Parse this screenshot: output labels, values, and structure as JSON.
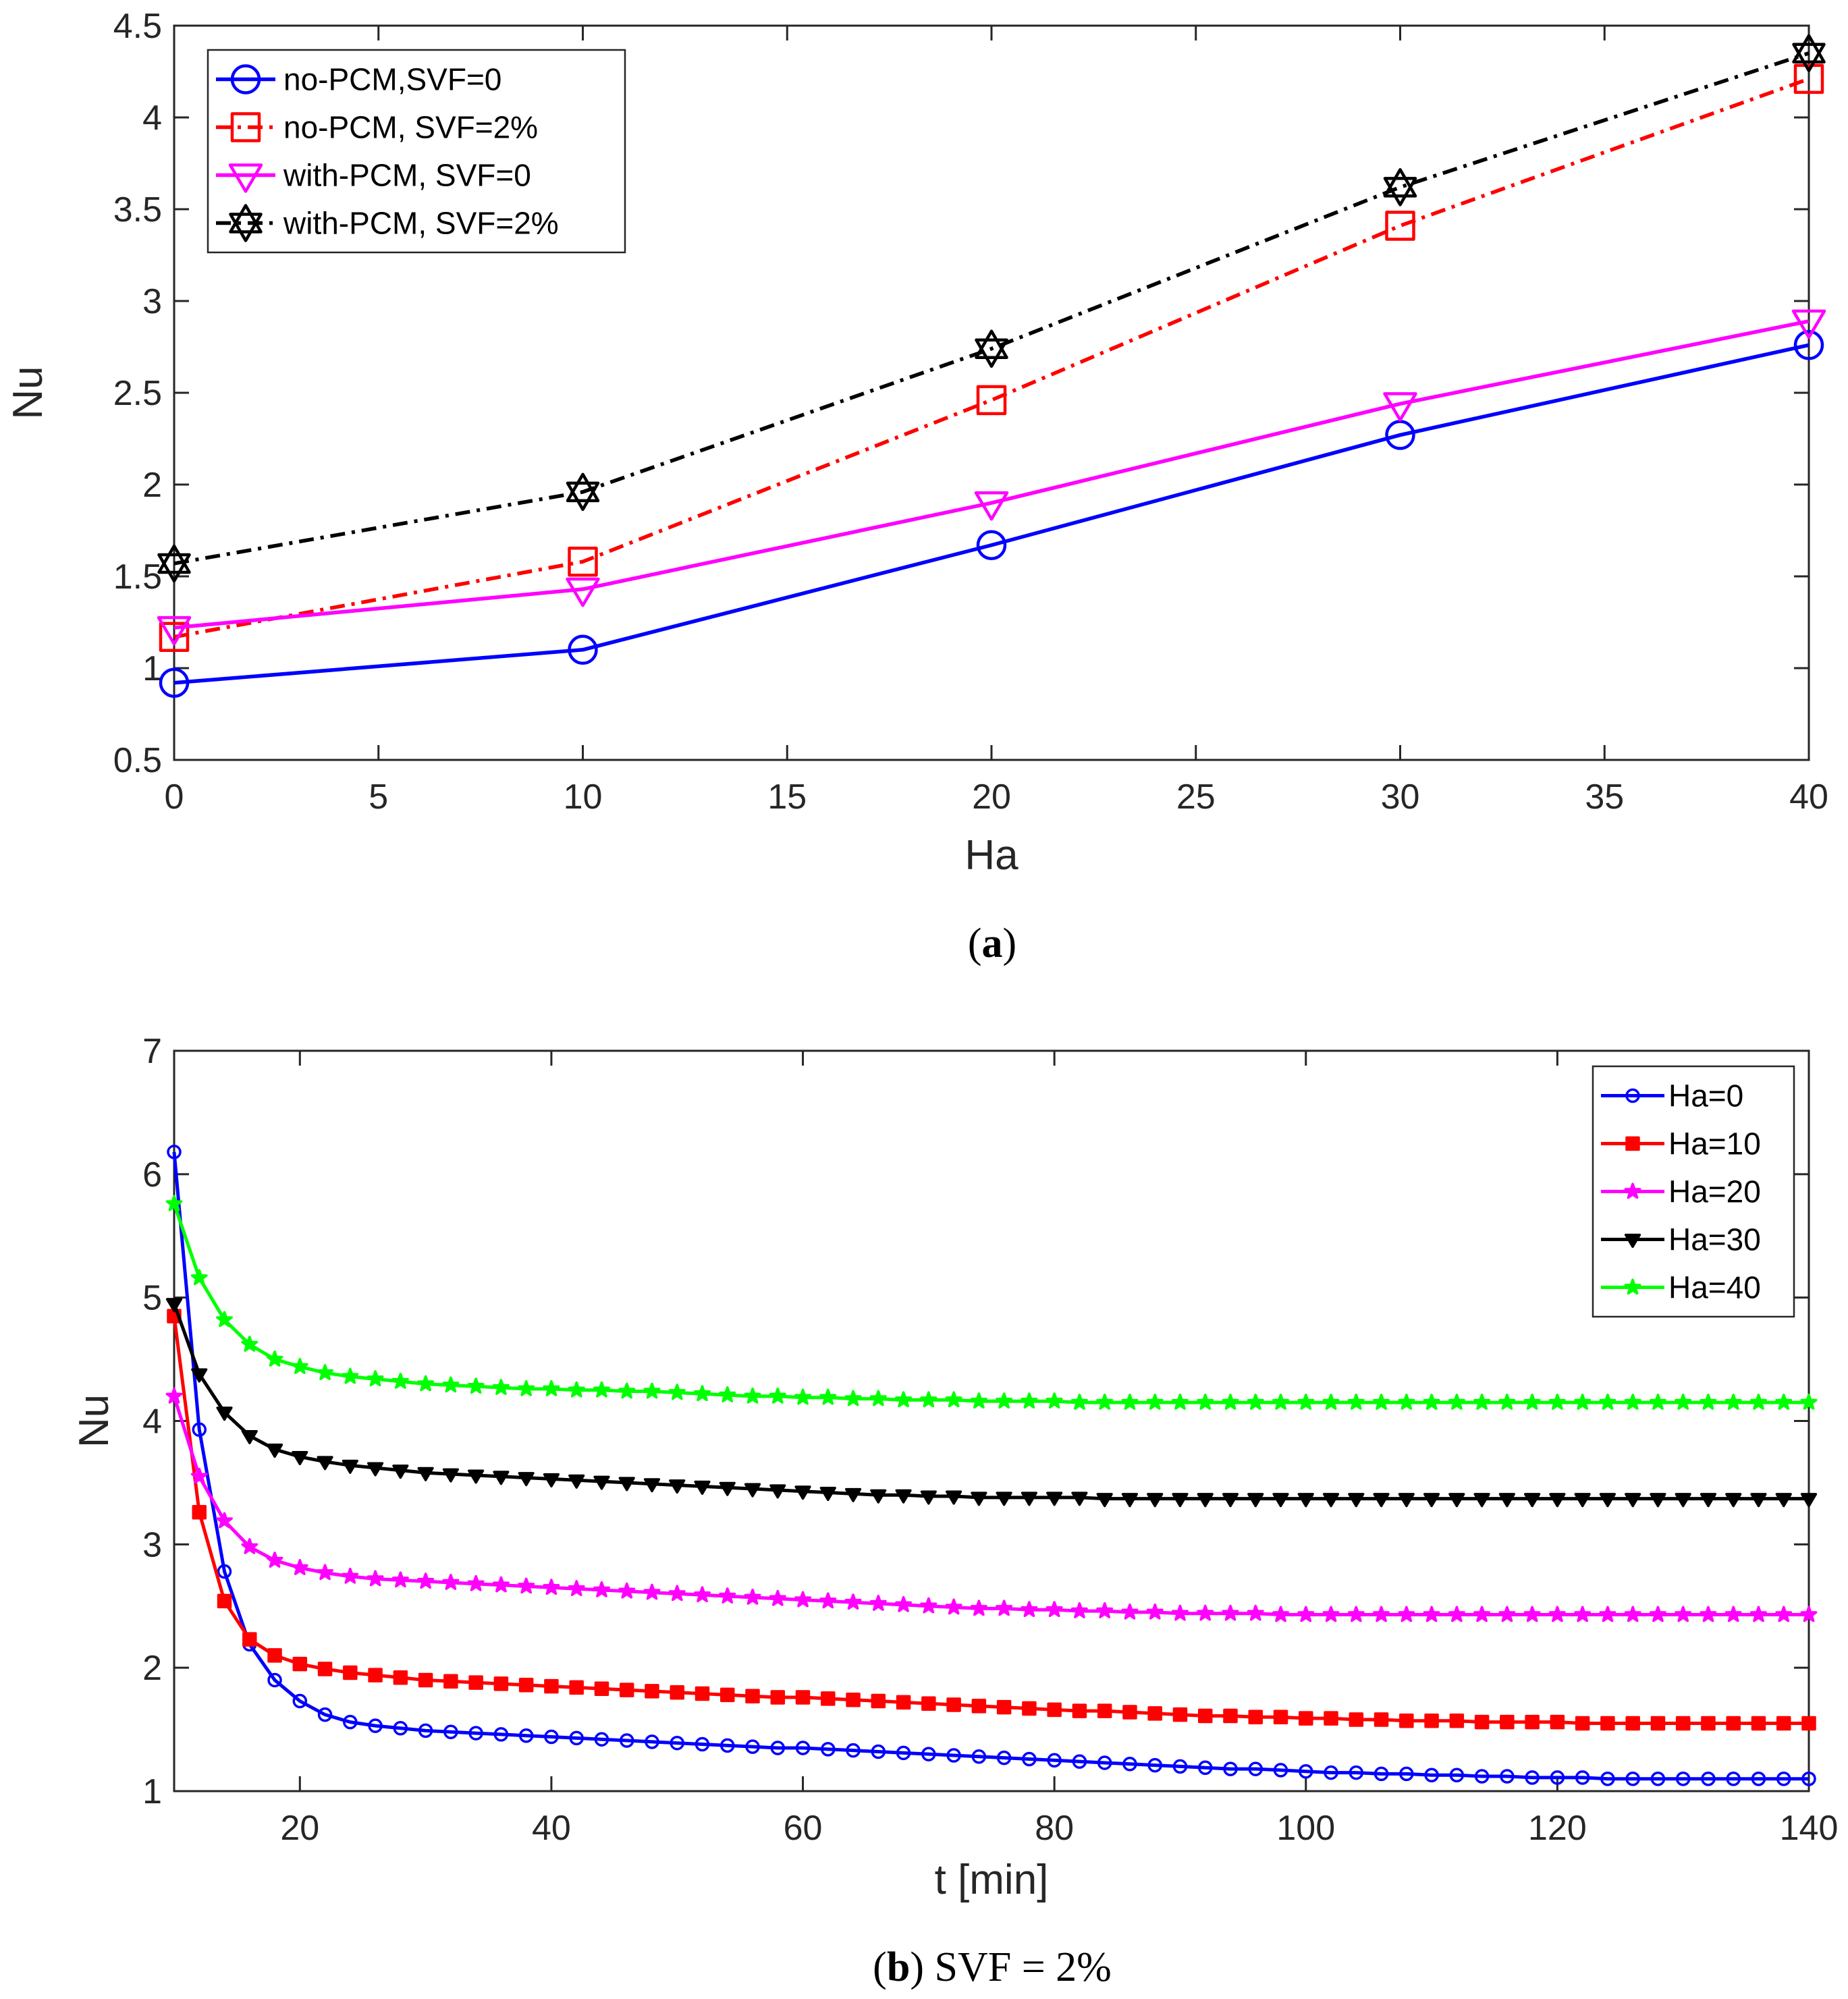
{
  "chart_data": [
    {
      "type": "line",
      "caption": {
        "open": "(",
        "letter": "a",
        "close": ")",
        "suffix": ""
      },
      "xlabel": "Ha",
      "ylabel": "Nu",
      "xlim": [
        0,
        40
      ],
      "ylim": [
        0.5,
        4.5
      ],
      "xticks": [
        0,
        5,
        10,
        15,
        20,
        25,
        30,
        35,
        40
      ],
      "yticks": [
        0.5,
        1,
        1.5,
        2,
        2.5,
        3,
        3.5,
        4,
        4.5
      ],
      "legend_position": "top-left",
      "x": [
        0,
        10,
        20,
        30,
        40
      ],
      "series": [
        {
          "name": "no-PCM,SVF=0",
          "color": "#0000ff",
          "marker": "circle",
          "dash": "solid",
          "values": [
            0.92,
            1.1,
            1.67,
            2.27,
            2.76
          ]
        },
        {
          "name": "no-PCM, SVF=2%",
          "color": "#ff0000",
          "marker": "square",
          "dash": "dashdot",
          "values": [
            1.17,
            1.58,
            2.46,
            3.41,
            4.21
          ]
        },
        {
          "name": "with-PCM, SVF=0",
          "color": "#ff00ff",
          "marker": "triangle-down",
          "dash": "solid",
          "values": [
            1.22,
            1.43,
            1.9,
            2.44,
            2.89
          ]
        },
        {
          "name": "with-PCM, SVF=2%",
          "color": "#000000",
          "marker": "hexagram",
          "dash": "dashdot",
          "values": [
            1.57,
            1.96,
            2.74,
            3.62,
            4.35
          ]
        }
      ]
    },
    {
      "type": "line",
      "caption": {
        "open": "(",
        "letter": "b",
        "close": ")",
        "suffix": " SVF = 2%"
      },
      "xlabel": "t [min]",
      "ylabel": "Nu",
      "xlim": [
        10,
        140
      ],
      "ylim": [
        1,
        7
      ],
      "xticks": [
        20,
        40,
        60,
        80,
        100,
        120,
        140
      ],
      "yticks": [
        1,
        2,
        3,
        4,
        5,
        6,
        7
      ],
      "legend_position": "top-right",
      "x": [
        10,
        12,
        14,
        16,
        18,
        20,
        22,
        24,
        26,
        28,
        30,
        32,
        34,
        36,
        38,
        40,
        42,
        44,
        46,
        48,
        50,
        52,
        54,
        56,
        58,
        60,
        62,
        64,
        66,
        68,
        70,
        72,
        74,
        76,
        78,
        80,
        82,
        84,
        86,
        88,
        90,
        92,
        94,
        96,
        98,
        100,
        102,
        104,
        106,
        108,
        110,
        112,
        114,
        116,
        118,
        120,
        122,
        124,
        126,
        128,
        130,
        132,
        134,
        136,
        138,
        140
      ],
      "series": [
        {
          "name": "Ha=0",
          "color": "#0000ff",
          "marker": "circle",
          "values": [
            6.18,
            3.93,
            2.78,
            2.19,
            1.9,
            1.73,
            1.62,
            1.56,
            1.53,
            1.51,
            1.49,
            1.48,
            1.47,
            1.46,
            1.45,
            1.44,
            1.43,
            1.42,
            1.41,
            1.4,
            1.39,
            1.38,
            1.37,
            1.36,
            1.35,
            1.35,
            1.34,
            1.33,
            1.32,
            1.31,
            1.3,
            1.29,
            1.28,
            1.27,
            1.26,
            1.25,
            1.24,
            1.23,
            1.22,
            1.21,
            1.2,
            1.19,
            1.18,
            1.18,
            1.17,
            1.16,
            1.15,
            1.15,
            1.14,
            1.14,
            1.13,
            1.13,
            1.12,
            1.12,
            1.11,
            1.11,
            1.11,
            1.1,
            1.1,
            1.1,
            1.1,
            1.1,
            1.1,
            1.1,
            1.1,
            1.1
          ]
        },
        {
          "name": "Ha=10",
          "color": "#ff0000",
          "marker": "square",
          "values": [
            4.85,
            3.26,
            2.54,
            2.23,
            2.1,
            2.03,
            1.99,
            1.96,
            1.94,
            1.92,
            1.9,
            1.89,
            1.88,
            1.87,
            1.86,
            1.85,
            1.84,
            1.83,
            1.82,
            1.81,
            1.8,
            1.79,
            1.78,
            1.77,
            1.76,
            1.76,
            1.75,
            1.74,
            1.73,
            1.72,
            1.71,
            1.7,
            1.69,
            1.68,
            1.67,
            1.66,
            1.65,
            1.65,
            1.64,
            1.63,
            1.62,
            1.61,
            1.61,
            1.6,
            1.6,
            1.59,
            1.59,
            1.58,
            1.58,
            1.57,
            1.57,
            1.57,
            1.56,
            1.56,
            1.56,
            1.56,
            1.55,
            1.55,
            1.55,
            1.55,
            1.55,
            1.55,
            1.55,
            1.55,
            1.55,
            1.55
          ]
        },
        {
          "name": "Ha=20",
          "color": "#ff00ff",
          "marker": "star",
          "values": [
            4.2,
            3.55,
            3.19,
            2.98,
            2.87,
            2.81,
            2.77,
            2.74,
            2.72,
            2.71,
            2.7,
            2.69,
            2.68,
            2.67,
            2.66,
            2.65,
            2.64,
            2.63,
            2.62,
            2.61,
            2.6,
            2.59,
            2.58,
            2.57,
            2.56,
            2.55,
            2.54,
            2.53,
            2.52,
            2.51,
            2.5,
            2.49,
            2.48,
            2.48,
            2.47,
            2.47,
            2.46,
            2.46,
            2.45,
            2.45,
            2.44,
            2.44,
            2.44,
            2.44,
            2.43,
            2.43,
            2.43,
            2.43,
            2.43,
            2.43,
            2.43,
            2.43,
            2.43,
            2.43,
            2.43,
            2.43,
            2.43,
            2.43,
            2.43,
            2.43,
            2.43,
            2.43,
            2.43,
            2.43,
            2.43,
            2.43
          ]
        },
        {
          "name": "Ha=30",
          "color": "#000000",
          "marker": "triangle-down",
          "values": [
            4.95,
            4.38,
            4.07,
            3.88,
            3.77,
            3.71,
            3.67,
            3.64,
            3.62,
            3.6,
            3.58,
            3.57,
            3.56,
            3.55,
            3.54,
            3.53,
            3.52,
            3.51,
            3.5,
            3.49,
            3.48,
            3.47,
            3.46,
            3.45,
            3.44,
            3.43,
            3.42,
            3.41,
            3.4,
            3.4,
            3.39,
            3.39,
            3.38,
            3.38,
            3.38,
            3.38,
            3.38,
            3.37,
            3.37,
            3.37,
            3.37,
            3.37,
            3.37,
            3.37,
            3.37,
            3.37,
            3.37,
            3.37,
            3.37,
            3.37,
            3.37,
            3.37,
            3.37,
            3.37,
            3.37,
            3.37,
            3.37,
            3.37,
            3.37,
            3.37,
            3.37,
            3.37,
            3.37,
            3.37,
            3.37,
            3.37
          ]
        },
        {
          "name": "Ha=40",
          "color": "#00ff00",
          "marker": "star",
          "values": [
            5.76,
            5.16,
            4.82,
            4.62,
            4.5,
            4.44,
            4.39,
            4.36,
            4.34,
            4.32,
            4.3,
            4.29,
            4.28,
            4.27,
            4.26,
            4.26,
            4.25,
            4.25,
            4.24,
            4.24,
            4.23,
            4.22,
            4.21,
            4.2,
            4.2,
            4.19,
            4.19,
            4.18,
            4.18,
            4.17,
            4.17,
            4.17,
            4.16,
            4.16,
            4.16,
            4.16,
            4.15,
            4.15,
            4.15,
            4.15,
            4.15,
            4.15,
            4.15,
            4.15,
            4.15,
            4.15,
            4.15,
            4.15,
            4.15,
            4.15,
            4.15,
            4.15,
            4.15,
            4.15,
            4.15,
            4.15,
            4.15,
            4.15,
            4.15,
            4.15,
            4.15,
            4.15,
            4.15,
            4.15,
            4.15,
            4.15
          ]
        }
      ]
    }
  ]
}
